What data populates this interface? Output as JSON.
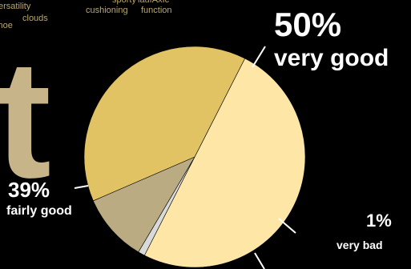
{
  "word_cloud": {
    "big_letter": "t",
    "words": [
      "ersatility",
      "shoe",
      "clouds",
      "cushioning",
      "function",
      "sporty",
      "laufAxIc"
    ]
  },
  "chart_data": {
    "type": "pie",
    "title": "",
    "start_angle_deg": 297,
    "direction": "clockwise",
    "slices": [
      {
        "label": "very good",
        "value": 50,
        "display": "50%",
        "color": "#fee6a6"
      },
      {
        "label": "very bad",
        "value": 1,
        "display": "1%",
        "color": "#d9d9d9"
      },
      {
        "label": "",
        "value": 10,
        "display": "",
        "color": "#baab83"
      },
      {
        "label": "fairly good",
        "value": 39,
        "display": "39%",
        "color": "#e2c364"
      }
    ]
  }
}
